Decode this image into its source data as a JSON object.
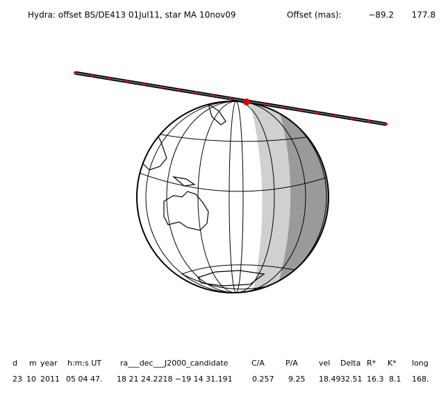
{
  "header": {
    "title": "Hydra: offset BS/DE413 01Jul11, star MA 10nov09",
    "offset_label": "Offset (mas):",
    "offset_x": "−89.2",
    "offset_y": "177.8"
  },
  "table": {
    "columns": [
      "d",
      "m",
      "year",
      "h:m:s UT",
      "ra___dec___J2000_candidate",
      "C/A",
      "P/A",
      "vel",
      "Delta",
      "R*",
      "K*",
      "long"
    ],
    "row": [
      "23",
      "10",
      "2011",
      "05 04 47.",
      "18 21 24.2218 −19 14 31.191",
      "0.257",
      "9.25",
      "18.49",
      "32.51",
      "16.3",
      "8.1",
      "168."
    ]
  }
}
